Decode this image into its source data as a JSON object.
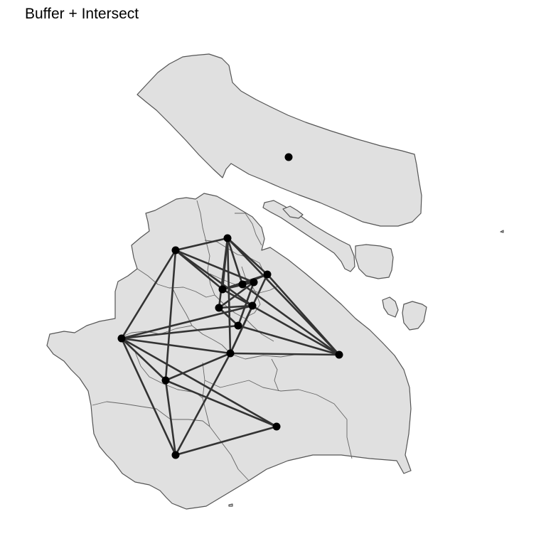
{
  "title": "Buffer + Intersect",
  "colors": {
    "land": "#e0e0e0",
    "border": "#555555",
    "edge": "#333333",
    "node": "#000000"
  },
  "map_data": {
    "type": "network",
    "nodes": [
      {
        "id": "n1"
      },
      {
        "id": "n2"
      },
      {
        "id": "n3"
      },
      {
        "id": "n4"
      },
      {
        "id": "n5"
      },
      {
        "id": "n6"
      },
      {
        "id": "n7"
      },
      {
        "id": "n8"
      },
      {
        "id": "n9"
      },
      {
        "id": "n10"
      },
      {
        "id": "n11"
      },
      {
        "id": "n12"
      },
      {
        "id": "n13"
      },
      {
        "id": "n14"
      },
      {
        "id": "n15"
      },
      {
        "id": "n16"
      }
    ],
    "edges": [
      [
        "n2",
        "n3"
      ],
      [
        "n2",
        "n5"
      ],
      [
        "n2",
        "n7"
      ],
      [
        "n2",
        "n9"
      ],
      [
        "n2",
        "n12"
      ],
      [
        "n2",
        "n14"
      ],
      [
        "n3",
        "n4"
      ],
      [
        "n3",
        "n5"
      ],
      [
        "n3",
        "n6"
      ],
      [
        "n3",
        "n8"
      ],
      [
        "n3",
        "n11"
      ],
      [
        "n3",
        "n13"
      ],
      [
        "n4",
        "n5"
      ],
      [
        "n4",
        "n6"
      ],
      [
        "n4",
        "n11"
      ],
      [
        "n4",
        "n13"
      ],
      [
        "n5",
        "n6"
      ],
      [
        "n5",
        "n7"
      ],
      [
        "n5",
        "n11"
      ],
      [
        "n6",
        "n7"
      ],
      [
        "n6",
        "n11"
      ],
      [
        "n7",
        "n8"
      ],
      [
        "n7",
        "n10"
      ],
      [
        "n8",
        "n9"
      ],
      [
        "n8",
        "n10"
      ],
      [
        "n9",
        "n12"
      ],
      [
        "n9",
        "n13"
      ],
      [
        "n10",
        "n11"
      ],
      [
        "n10",
        "n12"
      ],
      [
        "n11",
        "n13"
      ],
      [
        "n12",
        "n13"
      ],
      [
        "n12",
        "n14"
      ],
      [
        "n12",
        "n15"
      ],
      [
        "n12",
        "n16"
      ],
      [
        "n13",
        "n14"
      ],
      [
        "n13",
        "n16"
      ],
      [
        "n14",
        "n15"
      ],
      [
        "n14",
        "n16"
      ],
      [
        "n15",
        "n16"
      ]
    ]
  }
}
